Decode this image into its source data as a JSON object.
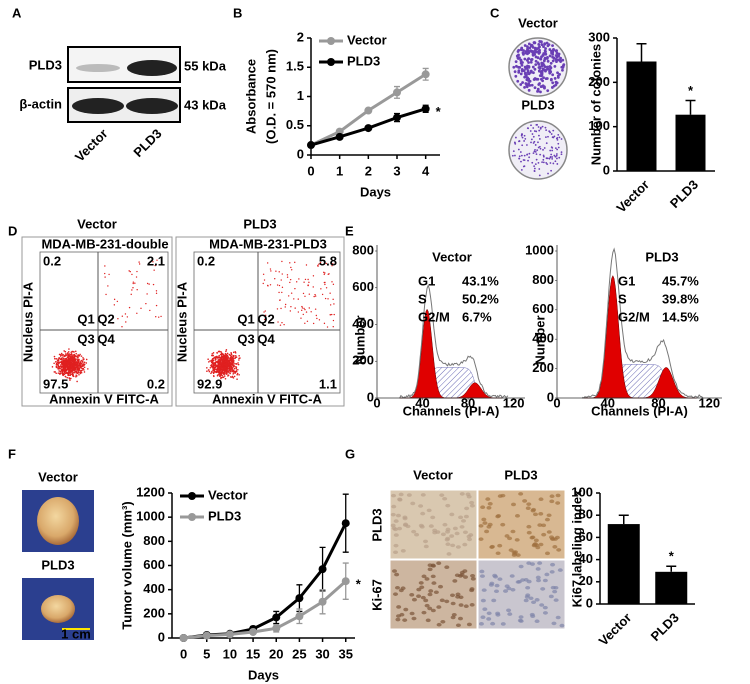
{
  "panel_labels": [
    "A",
    "B",
    "C",
    "D",
    "E",
    "F",
    "G"
  ],
  "panel_a": {
    "rows": [
      "PLD3",
      "β-actin"
    ],
    "sizes": [
      "55 kDa",
      "43 kDa"
    ],
    "lanes": [
      "Vector",
      "PLD3"
    ]
  },
  "chart_data": [
    {
      "type": "line",
      "x": [
        0,
        1,
        2,
        3,
        4
      ],
      "xlim": [
        0,
        4.5
      ],
      "xticks": [
        0,
        1,
        2,
        3,
        4
      ],
      "ylim": [
        0,
        2
      ],
      "yticks": [
        0,
        0.5,
        1,
        1.5,
        2
      ],
      "xlabel": "Days",
      "ylabel": [
        "Absorbance",
        "(O.D. = 570 nm)"
      ],
      "annotation": "*",
      "legend": "top-left",
      "series": [
        {
          "name": "Vector",
          "color": "#999999",
          "values": [
            0.17,
            0.4,
            0.76,
            1.07,
            1.38
          ],
          "errors": [
            0.01,
            0.02,
            0.03,
            0.1,
            0.1
          ]
        },
        {
          "name": "PLD3",
          "color": "#000000",
          "values": [
            0.17,
            0.31,
            0.46,
            0.64,
            0.79
          ],
          "errors": [
            0.01,
            0.02,
            0.03,
            0.07,
            0.06
          ]
        }
      ]
    },
    {
      "type": "bar",
      "categories": [
        "Vector",
        "PLD3"
      ],
      "values": [
        247,
        127
      ],
      "errors": [
        40,
        32
      ],
      "color": "#000000",
      "ylim": [
        0,
        300
      ],
      "yticks": [
        0,
        100,
        200,
        300
      ],
      "ylabel": "Number of colonies",
      "annotation": "*",
      "images": [
        "Vector",
        "PLD3"
      ]
    },
    {
      "type": "line",
      "x": [
        0,
        5,
        10,
        15,
        20,
        25,
        30,
        35
      ],
      "xlim": [
        -2.5,
        37
      ],
      "xticks": [
        0,
        5,
        10,
        15,
        20,
        25,
        30,
        35
      ],
      "ylim": [
        0,
        1200
      ],
      "yticks": [
        0,
        200,
        400,
        600,
        800,
        1000,
        1200
      ],
      "xlabel": "Days",
      "ylabel": "Tumor volume (mm³)",
      "annotation": "*",
      "legend": "top-left",
      "images": [
        "Vector",
        "PLD3"
      ],
      "scale_bar": "1 cm",
      "series": [
        {
          "name": "Vector",
          "color": "#000000",
          "values": [
            0,
            25,
            35,
            75,
            170,
            330,
            570,
            950
          ],
          "errors": [
            0,
            10,
            10,
            20,
            50,
            110,
            180,
            240
          ]
        },
        {
          "name": "PLD3",
          "color": "#999999",
          "values": [
            0,
            20,
            30,
            50,
            80,
            180,
            300,
            470
          ],
          "errors": [
            0,
            10,
            10,
            15,
            30,
            60,
            100,
            150
          ]
        }
      ]
    },
    {
      "type": "bar",
      "categories": [
        "Vector",
        "PLD3"
      ],
      "values": [
        72,
        29
      ],
      "errors": [
        8,
        5
      ],
      "color": "#000000",
      "ylim": [
        0,
        100
      ],
      "yticks": [
        0,
        20,
        40,
        60,
        80,
        100
      ],
      "ylabel": "Ki67 labeling index",
      "annotation": "*",
      "images": {
        "columns": [
          "Vector",
          "PLD3"
        ],
        "rows": [
          "PLD3",
          "Ki-67"
        ]
      }
    }
  ],
  "panel_d": {
    "plots": [
      {
        "title": "Vector",
        "header": "MDA-MB-231-double",
        "quadrants": [
          0.2,
          2.1,
          97.5,
          0.2
        ]
      },
      {
        "title": "PLD3",
        "header": "MDA-MB-231-PLD3",
        "quadrants": [
          0.2,
          5.8,
          92.9,
          1.1
        ]
      }
    ],
    "gates": [
      "Q1",
      "Q2",
      "Q3",
      "Q4"
    ],
    "ylabel": "Nucleus PI-A",
    "xlabel": "Annexin V FITC-A"
  },
  "panel_e": {
    "plots": [
      {
        "title": "Vector",
        "phases": [
          [
            "G1",
            "43.1%"
          ],
          [
            "S",
            "50.2%"
          ],
          [
            "G2/M",
            "6.7%"
          ]
        ],
        "yticks": [
          0,
          200,
          400,
          600,
          800
        ]
      },
      {
        "title": "PLD3",
        "phases": [
          [
            "G1",
            "45.7%"
          ],
          [
            "S",
            "39.8%"
          ],
          [
            "G2/M",
            "14.5%"
          ]
        ],
        "yticks": [
          0,
          200,
          400,
          600,
          800,
          1000
        ]
      }
    ],
    "ylabel": "Number",
    "xlabel": "Channels (PI-A)",
    "xticks": [
      0,
      40,
      80,
      120
    ]
  }
}
